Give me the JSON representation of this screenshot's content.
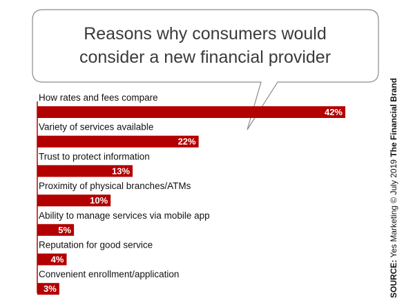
{
  "chart_data": {
    "type": "bar",
    "orientation": "horizontal",
    "title_lines": [
      "Reasons why consumers would",
      "consider a new financial provider"
    ],
    "categories": [
      "How rates and fees compare",
      "Variety of services available",
      "Trust to protect information",
      "Proximity of physical branches/ATMs",
      "Ability to manage services via mobile app",
      "Reputation for good service",
      "Convenient enrollment/application"
    ],
    "values": [
      42,
      22,
      13,
      10,
      5,
      4,
      3
    ],
    "value_labels": [
      "42%",
      "22%",
      "13%",
      "10%",
      "5%",
      "4%",
      "3%"
    ],
    "xlim": [
      0,
      42
    ],
    "bar_color": "#b30000",
    "grid": false
  },
  "source": {
    "label": "SOURCE:",
    "text": " Yes Marketing © July 2019 ",
    "brand": "The Financial Brand"
  }
}
